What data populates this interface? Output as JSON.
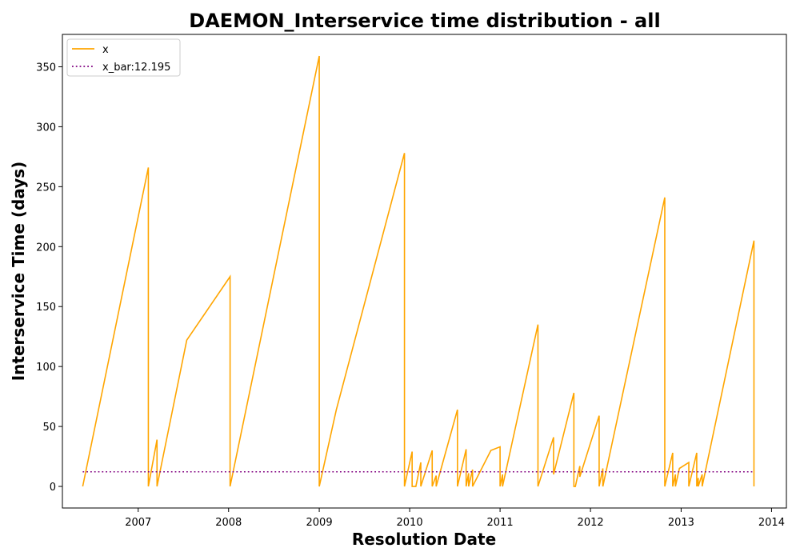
{
  "chart_data": {
    "type": "line",
    "title": "DAEMON_Interservice time distribution - all",
    "xlabel": "Resolution Date",
    "ylabel": "Interservice Time (days)",
    "xlim": [
      "2006-03-01",
      "2014-03-02"
    ],
    "ylim": [
      -18,
      377
    ],
    "x_ticks": [
      "2007",
      "2008",
      "2009",
      "2010",
      "2011",
      "2012",
      "2013",
      "2014"
    ],
    "y_ticks": [
      0,
      50,
      100,
      150,
      200,
      250,
      300,
      350
    ],
    "grid": false,
    "legend": {
      "position": "top-left",
      "entries": [
        "x",
        "x_bar:12.195"
      ]
    },
    "colors": {
      "x": "#FFA500",
      "x_bar": "#800080"
    },
    "series": [
      {
        "name": "x",
        "style": "solid",
        "points": [
          [
            "2006-05-22",
            0
          ],
          [
            "2007-02-11",
            266
          ],
          [
            "2007-02-11",
            0
          ],
          [
            "2007-03-18",
            39
          ],
          [
            "2007-03-18",
            0
          ],
          [
            "2007-07-16",
            122
          ],
          [
            "2008-01-07",
            175
          ],
          [
            "2008-01-07",
            0
          ],
          [
            "2009-01-01",
            359
          ],
          [
            "2009-01-01",
            0
          ],
          [
            "2009-03-11",
            64
          ],
          [
            "2009-12-11",
            278
          ],
          [
            "2009-12-11",
            0
          ],
          [
            "2010-01-11",
            29
          ],
          [
            "2010-01-11",
            0
          ],
          [
            "2010-01-26",
            0
          ],
          [
            "2010-02-15",
            20
          ],
          [
            "2010-02-15",
            0
          ],
          [
            "2010-04-02",
            30
          ],
          [
            "2010-04-02",
            0
          ],
          [
            "2010-04-18",
            9
          ],
          [
            "2010-04-18",
            0
          ],
          [
            "2010-07-13",
            64
          ],
          [
            "2010-07-13",
            0
          ],
          [
            "2010-08-17",
            31
          ],
          [
            "2010-08-17",
            0
          ],
          [
            "2010-08-27",
            11
          ],
          [
            "2010-08-27",
            0
          ],
          [
            "2010-09-12",
            14
          ],
          [
            "2010-09-12",
            0
          ],
          [
            "2010-11-25",
            30
          ],
          [
            "2011-01-01",
            33
          ],
          [
            "2011-01-01",
            0
          ],
          [
            "2011-01-11",
            10
          ],
          [
            "2011-01-11",
            0
          ],
          [
            "2011-06-03",
            135
          ],
          [
            "2011-06-03",
            0
          ],
          [
            "2011-08-05",
            41
          ],
          [
            "2011-08-05",
            10
          ],
          [
            "2011-10-26",
            78
          ],
          [
            "2011-10-26",
            0
          ],
          [
            "2011-11-01",
            0
          ],
          [
            "2011-11-19",
            17
          ],
          [
            "2011-11-19",
            8
          ],
          [
            "2012-02-05",
            59
          ],
          [
            "2012-02-05",
            0
          ],
          [
            "2012-02-20",
            15
          ],
          [
            "2012-02-20",
            0
          ],
          [
            "2012-10-27",
            241
          ],
          [
            "2012-10-27",
            0
          ],
          [
            "2012-11-28",
            28
          ],
          [
            "2012-11-28",
            0
          ],
          [
            "2012-12-09",
            10
          ],
          [
            "2012-12-09",
            0
          ],
          [
            "2012-12-25",
            15
          ],
          [
            "2013-02-01",
            20
          ],
          [
            "2013-02-01",
            0
          ],
          [
            "2013-03-05",
            28
          ],
          [
            "2013-03-05",
            0
          ],
          [
            "2013-03-11",
            7
          ],
          [
            "2013-03-11",
            0
          ],
          [
            "2013-03-27",
            10
          ],
          [
            "2013-03-27",
            0
          ],
          [
            "2013-10-22",
            205
          ],
          [
            "2013-10-22",
            0
          ]
        ]
      },
      {
        "name": "x_bar:12.195",
        "style": "dotted",
        "points": [
          [
            "2006-05-22",
            12.195
          ],
          [
            "2013-10-22",
            12.195
          ]
        ]
      }
    ]
  }
}
